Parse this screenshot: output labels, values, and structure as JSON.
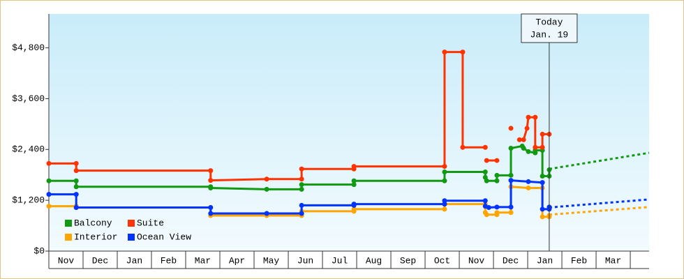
{
  "chart_data": {
    "type": "line",
    "xlim": [
      0,
      17.55
    ],
    "xticks": [
      {
        "value": 0,
        "label": "Nov"
      },
      {
        "value": 1,
        "label": "Dec"
      },
      {
        "value": 2,
        "label": "Jan"
      },
      {
        "value": 3,
        "label": "Feb"
      },
      {
        "value": 4,
        "label": "Mar"
      },
      {
        "value": 5,
        "label": "Apr"
      },
      {
        "value": 6,
        "label": "May"
      },
      {
        "value": 7,
        "label": "Jun"
      },
      {
        "value": 8,
        "label": "Jul"
      },
      {
        "value": 9,
        "label": "Aug"
      },
      {
        "value": 10,
        "label": "Sep"
      },
      {
        "value": 11,
        "label": "Oct"
      },
      {
        "value": 12,
        "label": "Nov"
      },
      {
        "value": 13,
        "label": "Dec"
      },
      {
        "value": 14,
        "label": "Jan"
      },
      {
        "value": 15,
        "label": "Feb"
      },
      {
        "value": 16,
        "label": "Mar"
      }
    ],
    "ylim": [
      0,
      5600
    ],
    "yticks": [
      {
        "value": 0,
        "label": "$0"
      },
      {
        "value": 1200,
        "label": "$1,200"
      },
      {
        "value": 2400,
        "label": "$2,400"
      },
      {
        "value": 3600,
        "label": "$3,600"
      },
      {
        "value": 4800,
        "label": "$4,800"
      }
    ],
    "grid": false,
    "annotation": {
      "label": "Today",
      "date": "Jan. 19",
      "x": 14.63
    },
    "series": [
      {
        "name": "Balcony",
        "color": "#119911",
        "x": [
          0,
          0.8,
          0.8,
          4.73,
          4.73,
          6.37,
          7.39,
          7.39,
          8.92,
          8.92,
          11.57,
          11.57,
          12.76,
          12.76,
          12.8,
          13.1,
          13.1,
          13.51,
          13.51,
          13.84,
          13.88,
          14.02,
          14.22,
          14.22,
          14.43,
          14.43,
          14.63,
          14.63
        ],
        "values": [
          1660,
          1660,
          1520,
          1520,
          1490,
          1460,
          1460,
          1570,
          1570,
          1660,
          1660,
          1870,
          1870,
          1740,
          1660,
          1660,
          1790,
          1790,
          2430,
          2480,
          2430,
          2350,
          2320,
          2380,
          2380,
          1770,
          1770,
          1920
        ],
        "projection": {
          "x": [
            14.63,
            17.55
          ],
          "values": [
            1940,
            2320
          ]
        }
      },
      {
        "name": "Suite",
        "color": "#ff3300",
        "x": [
          0,
          0.8,
          0.8,
          4.73,
          4.73,
          6.37,
          7.39,
          7.39,
          8.92,
          8.92,
          11.57,
          11.57,
          12.1,
          12.1,
          12.76,
          null,
          12.8,
          13.1,
          null,
          13.51,
          null,
          13.76,
          13.88,
          13.98,
          14.02,
          14.22,
          14.22,
          14.43,
          14.43,
          14.63
        ],
        "values": [
          2070,
          2070,
          1900,
          1900,
          1670,
          1700,
          1700,
          1940,
          1940,
          2000,
          2000,
          4700,
          4700,
          2450,
          2450,
          null,
          2140,
          2140,
          null,
          2900,
          null,
          2630,
          2630,
          2900,
          3160,
          3160,
          2450,
          2450,
          2760,
          2760
        ]
      },
      {
        "name": "Interior",
        "color": "#ffa500",
        "x": [
          0,
          0.8,
          0.8,
          4.73,
          4.73,
          6.37,
          7.39,
          7.39,
          8.92,
          8.92,
          11.57,
          11.57,
          12.76,
          12.76,
          12.8,
          13.1,
          13.1,
          13.51,
          13.51,
          14.02,
          14.43,
          14.43,
          14.63,
          14.63
        ],
        "values": [
          1060,
          1060,
          1030,
          1030,
          840,
          840,
          840,
          940,
          940,
          990,
          990,
          1110,
          1110,
          910,
          860,
          860,
          910,
          910,
          1520,
          1490,
          1490,
          810,
          810,
          840
        ],
        "projection": {
          "x": [
            14.63,
            17.55
          ],
          "values": [
            860,
            1040
          ]
        }
      },
      {
        "name": "Ocean View",
        "color": "#0033ff",
        "x": [
          0,
          0.8,
          0.8,
          4.73,
          4.73,
          6.37,
          7.39,
          7.39,
          8.92,
          8.92,
          11.57,
          11.57,
          12.76,
          12.76,
          12.86,
          13.1,
          13.51,
          13.51,
          14.02,
          14.43,
          14.43,
          14.63,
          14.63
        ],
        "values": [
          1340,
          1340,
          1030,
          1030,
          890,
          890,
          890,
          1080,
          1080,
          1110,
          1110,
          1190,
          1190,
          1060,
          1030,
          1040,
          1040,
          1670,
          1640,
          1620,
          990,
          990,
          1040
        ],
        "projection": {
          "x": [
            14.63,
            17.55
          ],
          "values": [
            1030,
            1220
          ]
        }
      }
    ]
  }
}
